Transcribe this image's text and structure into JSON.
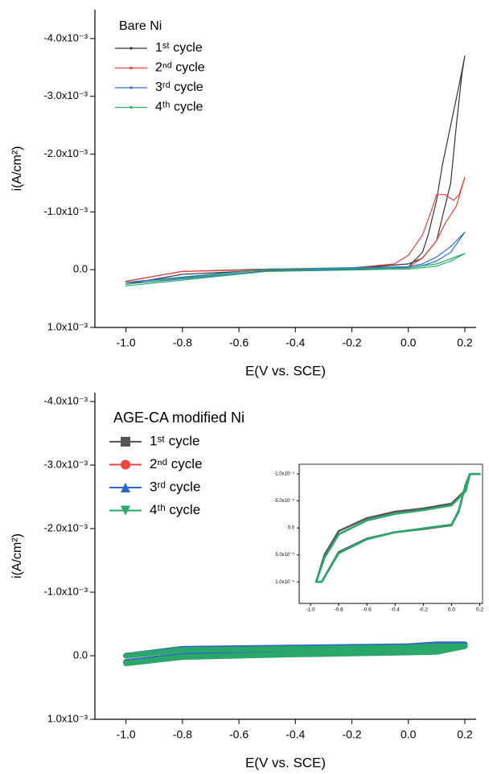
{
  "chart_data": [
    {
      "type": "line",
      "legend_title": "Bare Ni",
      "xlabel": "E(V vs. SCE)",
      "ylabel": "i(A/cm²)",
      "xlim": [
        -1.11,
        0.24
      ],
      "ylim": [
        0.001,
        -0.0045
      ],
      "xticks": [
        {
          "value": -1.0,
          "label": "-1.0"
        },
        {
          "value": -0.8,
          "label": "-0.8"
        },
        {
          "value": -0.6,
          "label": "-0.6"
        },
        {
          "value": -0.4,
          "label": "-0.4"
        },
        {
          "value": -0.2,
          "label": "-0.2"
        },
        {
          "value": 0,
          "label": "0.0"
        },
        0.2
      ],
      "yticks": [
        {
          "value": -0.004,
          "label": "-4.0x10⁻³"
        },
        {
          "value": -0.003,
          "label": "-3.0x10⁻³"
        },
        {
          "value": -0.002,
          "label": "-2.0x10⁻³"
        },
        {
          "value": -0.001,
          "label": "-1.0x10⁻³"
        },
        {
          "value": 0,
          "label": "0.0"
        },
        {
          "value": 0.001,
          "label": "1.0x10⁻³"
        }
      ],
      "series": [
        {
          "name": "1ˢᵗ cycle",
          "color": "#333333",
          "x": [
            -1.0,
            -0.8,
            -0.5,
            -0.2,
            0.0,
            0.05,
            0.1,
            0.15,
            0.17,
            0.19,
            0.2,
            0.18,
            0.15,
            0.12,
            0.1,
            0.07,
            0.05,
            0.0,
            -0.2,
            -0.5,
            -0.8,
            -1.0
          ],
          "values": [
            0.0002,
            3e-05,
            -1e-05,
            -2e-05,
            -0.0001,
            -0.0002,
            -0.0005,
            -0.0015,
            -0.0025,
            -0.0034,
            -0.0037,
            -0.0032,
            -0.0025,
            -0.0018,
            -0.0012,
            -0.0006,
            -0.0003,
            -5e-05,
            0.0,
            1e-05,
            8e-05,
            0.00025
          ]
        },
        {
          "name": "2ⁿᵈ cycle",
          "color": "#e8413c",
          "x": [
            -1.0,
            -0.8,
            -0.2,
            -0.05,
            0.0,
            0.05,
            0.08,
            0.1,
            0.13,
            0.16,
            0.18,
            0.2,
            0.17,
            0.13,
            0.1,
            0.05,
            0.0,
            -0.5,
            -1.0
          ],
          "values": [
            0.0002,
            3e-05,
            -3e-05,
            -0.0001,
            -0.00025,
            -0.0006,
            -0.001,
            -0.0013,
            -0.0013,
            -0.0012,
            -0.0013,
            -0.0016,
            -0.0011,
            -0.0008,
            -0.0005,
            -0.0002,
            -5e-05,
            0.0,
            0.00022
          ]
        },
        {
          "name": "3ʳᵈ cycle",
          "color": "#2b6fd0",
          "x": [
            -1.0,
            -0.5,
            0.0,
            0.05,
            0.1,
            0.15,
            0.2,
            0.15,
            0.1,
            0.05,
            0.0,
            -0.5,
            -1.0
          ],
          "values": [
            0.00022,
            -1e-05,
            -5e-05,
            -0.0001,
            -0.00022,
            -0.0004,
            -0.00065,
            -0.0003,
            -0.00015,
            -7e-05,
            -3e-05,
            2e-05,
            0.00025
          ]
        },
        {
          "name": "4ᵗʰ cycle",
          "color": "#27ad6b",
          "x": [
            -1.0,
            -0.5,
            0.0,
            0.1,
            0.2,
            0.15,
            0.1,
            0.0,
            -0.5,
            -1.0
          ],
          "values": [
            0.00025,
            -1e-05,
            -3e-05,
            -0.0001,
            -0.00028,
            -0.00015,
            -6e-05,
            -1e-05,
            3e-05,
            0.00028
          ]
        }
      ]
    },
    {
      "type": "line",
      "legend_title": "AGE-CA modified Ni",
      "xlabel": "E(V vs. SCE)",
      "ylabel": "i(A/cm²)",
      "xlim": [
        -1.11,
        0.24
      ],
      "ylim": [
        0.001,
        -0.00414
      ],
      "xticks": [
        {
          "value": -1.0,
          "label": "-1.0"
        },
        {
          "value": -0.8,
          "label": "-0.8"
        },
        {
          "value": -0.6,
          "label": "-0.6"
        },
        {
          "value": -0.4,
          "label": "-0.4"
        },
        {
          "value": -0.2,
          "label": "-0.2"
        },
        {
          "value": 0,
          "label": "0.0"
        },
        0.2
      ],
      "yticks": [
        {
          "value": -0.004,
          "label": "-4.0x10⁻³"
        },
        {
          "value": -0.003,
          "label": "-3.0x10⁻³"
        },
        {
          "value": -0.002,
          "label": "-2.0x10⁻³"
        },
        {
          "value": -0.001,
          "label": "-1.0x10⁻³"
        },
        {
          "value": 0,
          "label": "0.0"
        },
        {
          "value": 0.001,
          "label": "1.0x10⁻³"
        }
      ],
      "series": [
        {
          "name": "1ˢᵗ cycle",
          "color": "#555555",
          "marker": "square",
          "x": [
            -1.0,
            -0.8,
            -0.4,
            0.0,
            0.1,
            0.2,
            0.1,
            0.0,
            -0.4,
            -0.8,
            -1.0
          ],
          "values": [
            0.0,
            -0.0001,
            -0.00012,
            -0.00014,
            -0.00016,
            -0.00016,
            -7e-05,
            -6e-05,
            -3e-05,
            0.0,
            0.0001
          ]
        },
        {
          "name": "2ⁿᵈ cycle",
          "color": "#ee4444",
          "marker": "circle",
          "x": [
            -1.0,
            -0.8,
            -0.4,
            0.0,
            0.1,
            0.2,
            0.1,
            0.0,
            -0.4,
            -0.8,
            -1.0
          ],
          "values": [
            0.0,
            -0.0001,
            -0.00012,
            -0.00014,
            -0.00016,
            -0.00016,
            -7e-05,
            -6e-05,
            -3e-05,
            0.0,
            0.0001
          ]
        },
        {
          "name": "3ʳᵈ cycle",
          "color": "#2f64c8",
          "marker": "triangle",
          "x": [
            -1.0,
            -0.8,
            -0.4,
            0.0,
            0.1,
            0.2,
            0.1,
            0.0,
            -0.4,
            -0.8,
            -1.0
          ],
          "values": [
            0.0,
            -0.00011,
            -0.00013,
            -0.00015,
            -0.00018,
            -0.00018,
            -8e-05,
            -7e-05,
            -4e-05,
            0.0,
            0.0001
          ]
        },
        {
          "name": "4ᵗʰ cycle",
          "color": "#2aa86a",
          "marker": "triangle-down",
          "x": [
            -1.0,
            -0.8,
            -0.4,
            0.0,
            0.1,
            0.2,
            0.1,
            0.0,
            -0.4,
            -0.8,
            -1.0
          ],
          "values": [
            0.0,
            -9e-05,
            -0.00011,
            -0.00013,
            -0.00015,
            -0.00015,
            -6e-05,
            -5e-05,
            -2e-05,
            2e-05,
            0.00012
          ]
        }
      ]
    },
    {
      "type": "line",
      "xlim": [
        -1.08,
        0.22
      ],
      "ylim": [
        0.00014,
        -0.000118
      ],
      "xticks": [
        {
          "value": -1.0,
          "label": "-1.0"
        },
        {
          "value": -0.8,
          "label": "-0.8"
        },
        {
          "value": -0.6,
          "label": "-0.6"
        },
        {
          "value": -0.4,
          "label": "-0.4"
        },
        {
          "value": -0.2,
          "label": "-0.2"
        },
        {
          "value": 0,
          "label": "0.0"
        },
        0.2
      ],
      "yticks": [
        {
          "value": -0.0001,
          "label": "-1.0x10⁻⁴"
        },
        {
          "value": -5e-05,
          "label": "-5.0x10⁻⁵"
        },
        {
          "value": 0,
          "label": "0.0"
        },
        {
          "value": 5e-05,
          "label": "5.0x10⁻⁵"
        },
        {
          "value": 0.0001,
          "label": "1.0x10⁻⁴"
        }
      ],
      "series": [
        {
          "color": "#555555",
          "x": [
            -0.96,
            -0.9,
            -0.8,
            -0.6,
            -0.4,
            -0.2,
            0.0,
            0.1,
            0.13,
            0.2,
            0.13,
            0.1,
            0.05,
            0.0,
            -0.2,
            -0.4,
            -0.6,
            -0.8,
            -0.92,
            -0.96
          ],
          "values": [
            0.0001,
            5e-05,
            6e-06,
            -1.8e-05,
            -3e-05,
            -3.6e-05,
            -4.5e-05,
            -7e-05,
            -0.0001,
            -0.0001,
            -0.0001,
            -8e-05,
            -3e-05,
            -5e-06,
            2e-06,
            8e-06,
            2e-05,
            4.5e-05,
            0.0001,
            0.0001
          ]
        },
        {
          "color": "#2aa86a",
          "x": [
            -0.96,
            -0.9,
            -0.8,
            -0.6,
            -0.4,
            -0.2,
            0.0,
            0.1,
            0.13,
            0.2,
            0.13,
            0.1,
            0.05,
            0.0,
            -0.2,
            -0.4,
            -0.6,
            -0.8,
            -0.92,
            -0.96
          ],
          "values": [
            0.0001,
            5.5e-05,
            1.2e-05,
            -1.4e-05,
            -2.6e-05,
            -3.3e-05,
            -4.2e-05,
            -6.8e-05,
            -0.0001,
            -0.0001,
            -0.0001,
            -8e-05,
            -3.2e-05,
            -6e-06,
            1e-06,
            8e-06,
            2.1e-05,
            4.7e-05,
            0.0001,
            0.0001
          ]
        }
      ]
    }
  ]
}
